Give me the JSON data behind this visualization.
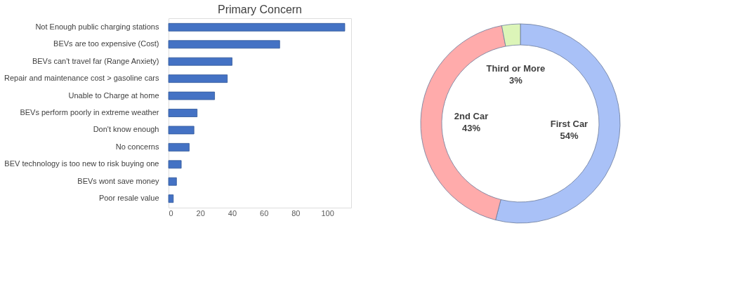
{
  "chart_data": [
    {
      "type": "bar",
      "orientation": "horizontal",
      "title": "Primary Concern",
      "categories": [
        "Not Enough public charging stations",
        "BEVs are too expensive (Cost)",
        "BEVs can't travel far (Range Anxiety)",
        "Repair and maintenance cost > gasoline cars",
        "Unable to Charge at home",
        "BEVs perform poorly in extreme weather",
        "Don't know enough",
        "No concerns",
        "BEV technology is too new to risk buying one",
        "BEVs wont save money",
        "Poor resale value"
      ],
      "values": [
        111,
        70,
        40,
        37,
        29,
        18,
        16,
        13,
        8,
        5,
        3
      ],
      "color": "#4472c4",
      "xlim": [
        0,
        115
      ],
      "xticks": [
        0,
        20,
        40,
        60,
        80,
        100
      ],
      "grid": false
    },
    {
      "type": "donut",
      "categories": [
        "First Car",
        "2nd Car",
        "Third or More"
      ],
      "values": [
        54,
        43,
        3
      ],
      "value_labels": [
        "54%",
        "43%",
        "3%"
      ],
      "colors": [
        "#a9c1f7",
        "#ffabab",
        "#dcf5b8"
      ]
    }
  ]
}
